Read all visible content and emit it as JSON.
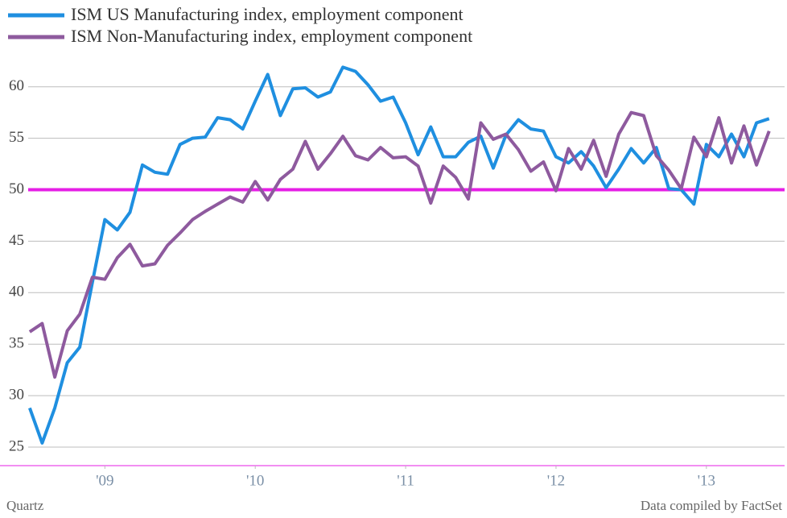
{
  "chart_data": {
    "type": "line",
    "legend": "top-left",
    "x": [
      2008.5,
      2008.583,
      2008.667,
      2008.75,
      2008.833,
      2008.917,
      2009,
      2009.083,
      2009.167,
      2009.25,
      2009.333,
      2009.417,
      2009.5,
      2009.583,
      2009.667,
      2009.75,
      2009.833,
      2009.917,
      2010,
      2010.083,
      2010.167,
      2010.25,
      2010.333,
      2010.417,
      2010.5,
      2010.583,
      2010.667,
      2010.75,
      2010.833,
      2010.917,
      2011,
      2011.083,
      2011.167,
      2011.25,
      2011.333,
      2011.417,
      2011.5,
      2011.583,
      2011.667,
      2011.75,
      2011.833,
      2011.917,
      2012,
      2012.083,
      2012.167,
      2012.25,
      2012.333,
      2012.417,
      2012.5,
      2012.583,
      2012.667,
      2012.75,
      2012.833,
      2012.917,
      2013,
      2013.083,
      2013.167,
      2013.25,
      2013.333,
      2013.417
    ],
    "series": [
      {
        "name": "ISM US Manufacturing index, employment component",
        "color": "#1f8fe0",
        "values": [
          28.8,
          25.4,
          28.8,
          33.2,
          34.7,
          41,
          47.1,
          46.1,
          47.8,
          52.4,
          51.7,
          51.5,
          54.4,
          55,
          55.1,
          57,
          56.8,
          55.9,
          58.6,
          61.2,
          57.2,
          59.8,
          59.9,
          59,
          59.5,
          61.9,
          61.5,
          60.2,
          58.6,
          59,
          56.5,
          53.4,
          56.1,
          53.2,
          53.2,
          54.6,
          55.2,
          52.1,
          55.3,
          56.8,
          55.9,
          55.7,
          53.2,
          52.6,
          53.7,
          52.3,
          50.2,
          52,
          54,
          52.6,
          54.1,
          50.1,
          50,
          48.6,
          54.4,
          53.2,
          55.4,
          53.2,
          56.5,
          56.9
        ]
      },
      {
        "name": "ISM Non-Manufacturing index, employment component",
        "color": "#8e5a9e",
        "values": [
          36.2,
          37,
          31.8,
          36.3,
          37.9,
          41.5,
          41.3,
          43.4,
          44.7,
          42.6,
          42.8,
          44.6,
          45.8,
          47.1,
          47.9,
          48.6,
          49.3,
          48.8,
          50.8,
          49,
          51,
          52,
          54.7,
          52,
          53.5,
          55.2,
          53.3,
          52.9,
          54.1,
          53.1,
          53.2,
          52.3,
          48.7,
          52.3,
          51.2,
          49.1,
          56.5,
          54.9,
          55.4,
          53.9,
          51.8,
          52.7,
          49.9,
          54,
          52,
          54.8,
          51.3,
          55.4,
          57.5,
          57.2,
          53.3,
          51.9,
          50.1,
          55.1,
          53.2,
          57,
          52.6,
          56.2,
          52.4,
          55.7
        ]
      }
    ],
    "reference_line": {
      "value": 50,
      "color": "#e61ee6"
    },
    "xlim": [
      2008.49,
      2013.52
    ],
    "xticks": [
      {
        "value": 2009,
        "label": "'09"
      },
      {
        "value": 2010,
        "label": "'10"
      },
      {
        "value": 2011,
        "label": "'11"
      },
      {
        "value": 2012,
        "label": "'12"
      },
      {
        "value": 2013,
        "label": "'13"
      }
    ],
    "ylim": [
      23.2,
      63.5
    ],
    "yticks": [
      25,
      30,
      35,
      40,
      45,
      50,
      55,
      60
    ],
    "grid": true,
    "source_left": "Quartz",
    "source_right": "Data compiled by FactSet"
  }
}
